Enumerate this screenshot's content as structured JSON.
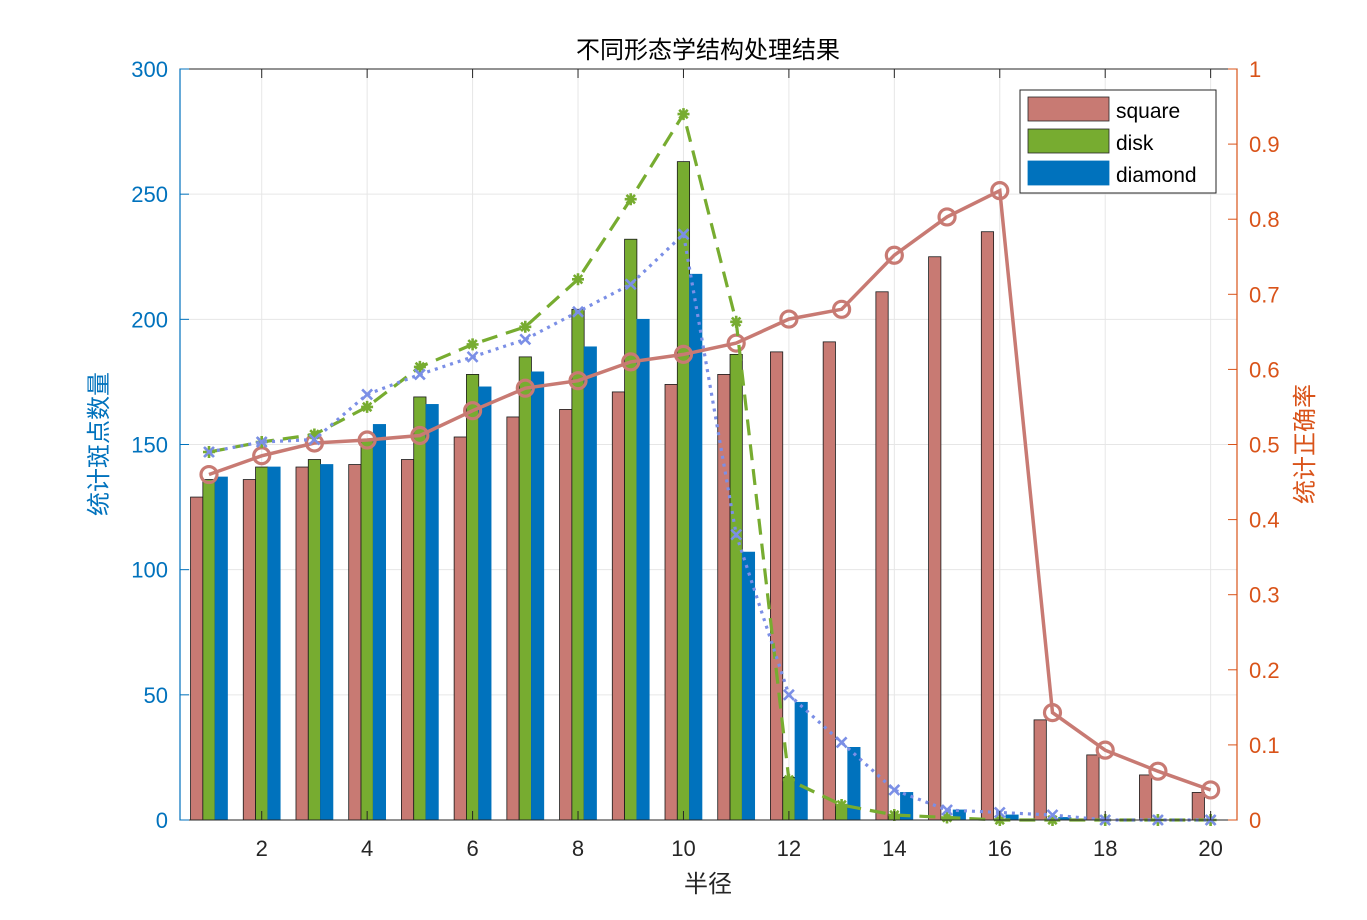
{
  "chart_data": {
    "type": "bar",
    "title": "不同形态学结构处理结果",
    "xlabel": "半径",
    "ylabel": "统计斑点数量",
    "ylabel_right": "统计正确率",
    "x": [
      1,
      2,
      3,
      4,
      5,
      6,
      7,
      8,
      9,
      10,
      11,
      12,
      13,
      14,
      15,
      16,
      17,
      18,
      19,
      20
    ],
    "xlim": [
      0.45,
      20.5
    ],
    "xticks": [
      2,
      4,
      6,
      8,
      10,
      12,
      14,
      16,
      18,
      20
    ],
    "ylim": [
      0,
      300
    ],
    "yticks": [
      0,
      50,
      100,
      150,
      200,
      250,
      300
    ],
    "ylim_right": [
      0,
      1
    ],
    "yticks_right": [
      "0",
      "0.1",
      "0.2",
      "0.3",
      "0.4",
      "0.5",
      "0.6",
      "0.7",
      "0.8",
      "0.9",
      "1"
    ],
    "grid": true,
    "legend_position": "top-right",
    "series": [
      {
        "name": "square",
        "kind": "bar",
        "color": "#C87A73",
        "values": [
          129,
          136,
          141,
          142,
          144,
          153,
          161,
          164,
          171,
          174,
          178,
          187,
          191,
          211,
          225,
          235,
          40,
          26,
          18,
          11
        ]
      },
      {
        "name": "disk",
        "kind": "bar",
        "color": "#77AC30",
        "values": [
          136,
          141,
          144,
          152,
          169,
          178,
          185,
          204,
          232,
          263,
          186,
          17,
          6,
          2,
          1,
          0,
          0,
          0,
          0,
          0
        ]
      },
      {
        "name": "diamond",
        "kind": "bar",
        "color": "#0072BD",
        "values": [
          137,
          141,
          142,
          158,
          166,
          173,
          179,
          189,
          200,
          218,
          107,
          47,
          29,
          11,
          4,
          2,
          1,
          0,
          0,
          0
        ]
      },
      {
        "name": "",
        "kind": "line",
        "axis": "right",
        "color": "#C87A73",
        "marker": "circle",
        "values": [
          0.46,
          0.485,
          0.502,
          0.506,
          0.512,
          0.545,
          0.575,
          0.585,
          0.61,
          0.62,
          0.635,
          0.667,
          0.68,
          0.752,
          0.803,
          0.838,
          0.143,
          0.093,
          0.065,
          0.04
        ]
      },
      {
        "name": "",
        "kind": "line",
        "axis": "left",
        "color": "#77AC30",
        "marker": "asterisk",
        "dash": "dashed",
        "values": [
          147,
          151,
          154,
          165,
          181,
          190,
          197,
          216,
          248,
          282,
          199,
          16,
          6,
          2,
          1,
          0,
          0,
          0,
          0,
          0
        ]
      },
      {
        "name": "",
        "kind": "line",
        "axis": "left",
        "color": "#7B8FE6",
        "marker": "x",
        "dash": "dotted",
        "values": [
          147,
          151,
          152,
          170,
          178,
          185,
          192,
          203,
          214,
          234,
          114,
          50,
          31,
          12,
          4,
          3,
          2,
          0,
          0,
          0
        ]
      }
    ]
  }
}
